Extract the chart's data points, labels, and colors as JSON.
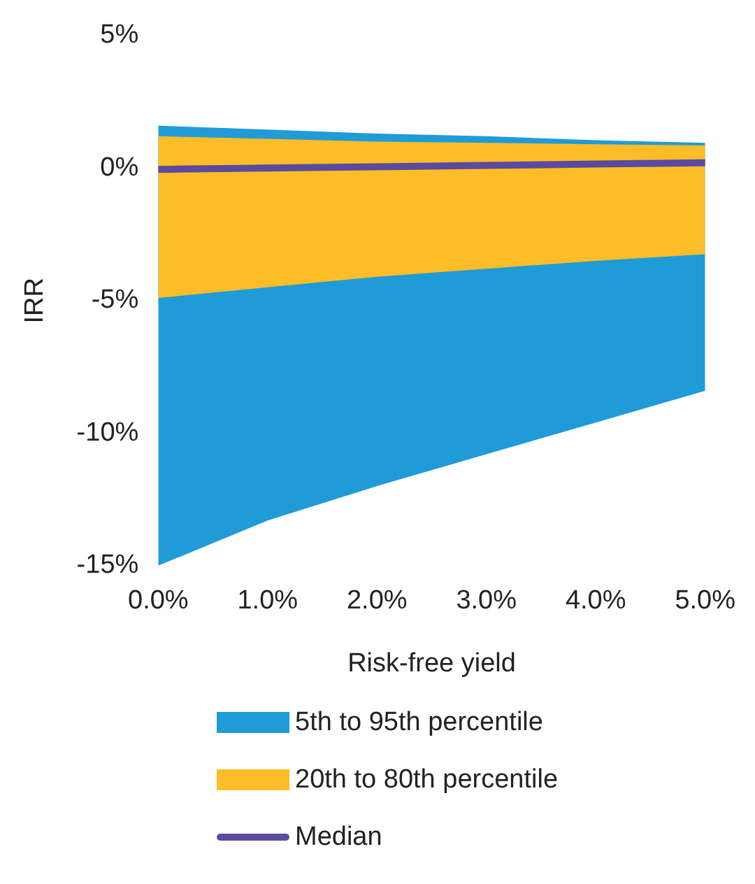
{
  "chart_data": {
    "type": "area",
    "xlabel": "Risk-free yield",
    "ylabel": "IRR",
    "x": [
      0,
      1,
      2,
      3,
      4,
      5
    ],
    "series": [
      {
        "name": "5th to 95th percentile",
        "type": "area",
        "color": "#1f9bd7",
        "values": [
          null,
          null,
          null,
          null,
          null,
          null
        ],
        "lower": [
          -15,
          -13.3,
          -12,
          -10.8,
          -9.6,
          -8.4
        ],
        "upper": [
          1.6,
          1.45,
          1.3,
          1.2,
          1.05,
          0.95
        ]
      },
      {
        "name": "20th to 80th percentile",
        "type": "area",
        "color": "#fdbd29",
        "values": [
          null,
          null,
          null,
          null,
          null,
          null
        ],
        "lower": [
          -4.9,
          -4.5,
          -4.1,
          -3.8,
          -3.5,
          -3.25
        ],
        "upper": [
          1.2,
          1.1,
          1.0,
          0.95,
          0.9,
          0.85
        ]
      },
      {
        "name": "Median",
        "type": "line",
        "color": "#5b4a9f",
        "values": [
          -0.05,
          0,
          0.05,
          0.1,
          0.15,
          0.2
        ]
      }
    ],
    "xlim": [
      0,
      5
    ],
    "ylim": [
      -15,
      5
    ],
    "xticks": [
      {
        "value": 0,
        "label": "0.0%"
      },
      {
        "value": 1,
        "label": "1.0%"
      },
      {
        "value": 2,
        "label": "2.0%"
      },
      {
        "value": 3,
        "label": "3.0%"
      },
      {
        "value": 4,
        "label": "4.0%"
      },
      {
        "value": 5,
        "label": "5.0%"
      }
    ],
    "yticks": [
      {
        "value": -15,
        "label": "-15%"
      },
      {
        "value": -10,
        "label": "-10%"
      },
      {
        "value": -5,
        "label": "-5%"
      },
      {
        "value": 0,
        "label": "0%"
      },
      {
        "value": 5,
        "label": "5%"
      }
    ],
    "grid": false,
    "legend": "bottom",
    "marker": "none",
    "line_style": "solid"
  }
}
